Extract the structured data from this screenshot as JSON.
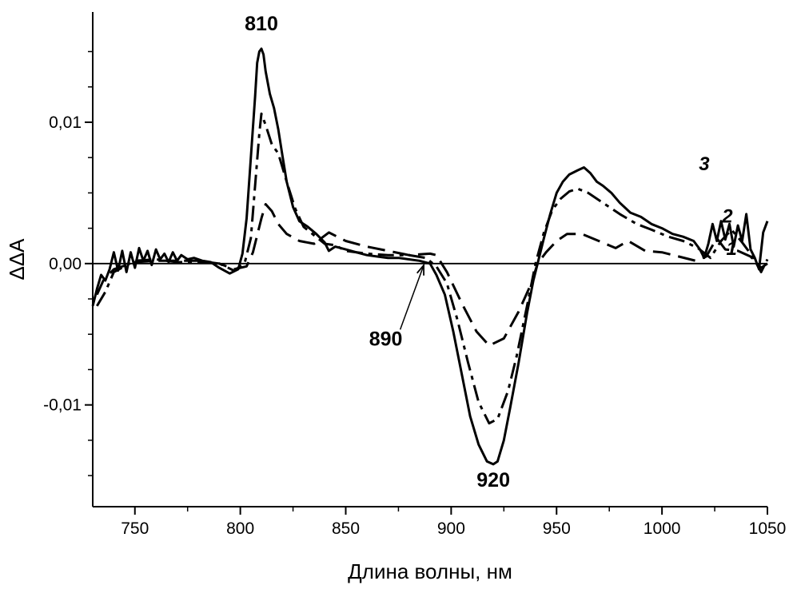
{
  "chart_data": {
    "type": "line",
    "title": "",
    "xlabel": "Длина волны, нм",
    "ylabel": "ΔΔA",
    "xlim": [
      730,
      1050
    ],
    "ylim": [
      -0.0172,
      0.0178
    ],
    "x_ticks": [
      750,
      800,
      850,
      900,
      950,
      1000,
      1050
    ],
    "x_tick_labels": [
      "750",
      "800",
      "850",
      "900",
      "950",
      "1000",
      "1050"
    ],
    "y_ticks": [
      -0.01,
      0.0,
      0.01
    ],
    "y_tick_labels": [
      "-0,01",
      "0,00",
      "0,01"
    ],
    "grid": false,
    "zero_line": true,
    "series": [
      {
        "name": "1",
        "style": "dashed",
        "points": [
          [
            732,
            -0.0022
          ],
          [
            735,
            -0.0012
          ],
          [
            740,
            -0.0004
          ],
          [
            750,
            0.0001
          ],
          [
            760,
            0.0002
          ],
          [
            770,
            0.0002
          ],
          [
            780,
            0.0002
          ],
          [
            790,
            0.0
          ],
          [
            797,
            -0.0004
          ],
          [
            803,
            -0.0002
          ],
          [
            806,
            0.0008
          ],
          [
            810,
            0.0032
          ],
          [
            812,
            0.0042
          ],
          [
            815,
            0.0037
          ],
          [
            818,
            0.0028
          ],
          [
            822,
            0.0021
          ],
          [
            828,
            0.0016
          ],
          [
            835,
            0.0014
          ],
          [
            842,
            0.0022
          ],
          [
            850,
            0.0016
          ],
          [
            860,
            0.0012
          ],
          [
            870,
            0.0009
          ],
          [
            880,
            0.0006
          ],
          [
            890,
            0.0007
          ],
          [
            893,
            0.0006
          ],
          [
            898,
            -0.0006
          ],
          [
            905,
            -0.0028
          ],
          [
            912,
            -0.0048
          ],
          [
            918,
            -0.0058
          ],
          [
            925,
            -0.0053
          ],
          [
            932,
            -0.0034
          ],
          [
            938,
            -0.0014
          ],
          [
            941,
            0.0
          ],
          [
            945,
            0.0008
          ],
          [
            950,
            0.0016
          ],
          [
            955,
            0.0021
          ],
          [
            962,
            0.0021
          ],
          [
            970,
            0.0016
          ],
          [
            978,
            0.0011
          ],
          [
            984,
            0.0016
          ],
          [
            992,
            0.0009
          ],
          [
            1000,
            0.0008
          ],
          [
            1008,
            0.0005
          ],
          [
            1016,
            0.0002
          ],
          [
            1021,
            0.0005
          ],
          [
            1026,
            0.0018
          ],
          [
            1030,
            0.001
          ],
          [
            1036,
            0.0009
          ],
          [
            1042,
            0.0005
          ],
          [
            1047,
            -0.0003
          ],
          [
            1050,
            0.0
          ]
        ]
      },
      {
        "name": "2",
        "style": "dash-dot",
        "points": [
          [
            732,
            -0.003
          ],
          [
            736,
            -0.002
          ],
          [
            740,
            -0.0006
          ],
          [
            750,
            0.0002
          ],
          [
            760,
            0.0003
          ],
          [
            770,
            0.0001
          ],
          [
            780,
            0.0001
          ],
          [
            790,
            0.0
          ],
          [
            797,
            -0.0005
          ],
          [
            802,
            0.0
          ],
          [
            805,
            0.0018
          ],
          [
            807,
            0.0055
          ],
          [
            809,
            0.0092
          ],
          [
            810,
            0.0106
          ],
          [
            812,
            0.0098
          ],
          [
            815,
            0.0084
          ],
          [
            818,
            0.0078
          ],
          [
            822,
            0.0058
          ],
          [
            826,
            0.0039
          ],
          [
            830,
            0.0026
          ],
          [
            835,
            0.002
          ],
          [
            840,
            0.0014
          ],
          [
            845,
            0.0013
          ],
          [
            850,
            0.0009
          ],
          [
            860,
            0.0007
          ],
          [
            870,
            0.0006
          ],
          [
            880,
            0.0006
          ],
          [
            888,
            0.0004
          ],
          [
            893,
            -0.0002
          ],
          [
            898,
            -0.0014
          ],
          [
            903,
            -0.004
          ],
          [
            908,
            -0.007
          ],
          [
            913,
            -0.0098
          ],
          [
            918,
            -0.0113
          ],
          [
            922,
            -0.011
          ],
          [
            927,
            -0.009
          ],
          [
            931,
            -0.0066
          ],
          [
            936,
            -0.003
          ],
          [
            940,
            0.0
          ],
          [
            944,
            0.0022
          ],
          [
            948,
            0.0038
          ],
          [
            952,
            0.0046
          ],
          [
            956,
            0.0051
          ],
          [
            960,
            0.0053
          ],
          [
            965,
            0.005
          ],
          [
            972,
            0.0043
          ],
          [
            980,
            0.0035
          ],
          [
            988,
            0.0028
          ],
          [
            995,
            0.0024
          ],
          [
            1003,
            0.0019
          ],
          [
            1010,
            0.0016
          ],
          [
            1017,
            0.0011
          ],
          [
            1023,
            0.0004
          ],
          [
            1028,
            0.0016
          ],
          [
            1033,
            0.0024
          ],
          [
            1038,
            0.0015
          ],
          [
            1043,
            0.0005
          ],
          [
            1047,
            -0.0006
          ],
          [
            1050,
            0.0003
          ]
        ]
      },
      {
        "name": "3",
        "style": "solid",
        "points": [
          [
            730,
            -0.003
          ],
          [
            732,
            -0.0018
          ],
          [
            734,
            -0.0008
          ],
          [
            736,
            -0.0012
          ],
          [
            738,
            -0.0004
          ],
          [
            740,
            0.0008
          ],
          [
            742,
            -0.0005
          ],
          [
            744,
            0.0009
          ],
          [
            746,
            -0.0006
          ],
          [
            748,
            0.0008
          ],
          [
            750,
            -0.0003
          ],
          [
            752,
            0.0011
          ],
          [
            754,
            0.0002
          ],
          [
            756,
            0.0009
          ],
          [
            758,
            -0.0001
          ],
          [
            760,
            0.001
          ],
          [
            762,
            0.0003
          ],
          [
            764,
            0.0007
          ],
          [
            766,
            0.0001
          ],
          [
            768,
            0.0008
          ],
          [
            770,
            0.0002
          ],
          [
            772,
            0.0006
          ],
          [
            775,
            0.0003
          ],
          [
            778,
            0.0004
          ],
          [
            782,
            0.0002
          ],
          [
            786,
            0.0001
          ],
          [
            790,
            -0.0003
          ],
          [
            795,
            -0.0007
          ],
          [
            799,
            -0.0004
          ],
          [
            801,
            0.0007
          ],
          [
            803,
            0.0032
          ],
          [
            805,
            0.0075
          ],
          [
            807,
            0.0118
          ],
          [
            808,
            0.0142
          ],
          [
            809,
            0.015
          ],
          [
            810,
            0.0152
          ],
          [
            811,
            0.0148
          ],
          [
            812,
            0.0136
          ],
          [
            814,
            0.012
          ],
          [
            816,
            0.011
          ],
          [
            818,
            0.0095
          ],
          [
            820,
            0.0076
          ],
          [
            822,
            0.0058
          ],
          [
            825,
            0.004
          ],
          [
            828,
            0.003
          ],
          [
            832,
            0.0026
          ],
          [
            836,
            0.0021
          ],
          [
            840,
            0.0015
          ],
          [
            842,
            0.0009
          ],
          [
            845,
            0.0012
          ],
          [
            850,
            0.001
          ],
          [
            855,
            0.0008
          ],
          [
            860,
            0.0006
          ],
          [
            865,
            0.0005
          ],
          [
            870,
            0.0004
          ],
          [
            875,
            0.0004
          ],
          [
            880,
            0.0003
          ],
          [
            885,
            0.0002
          ],
          [
            890,
            0.0
          ],
          [
            893,
            -0.0008
          ],
          [
            897,
            -0.0022
          ],
          [
            901,
            -0.0048
          ],
          [
            905,
            -0.0078
          ],
          [
            909,
            -0.0108
          ],
          [
            913,
            -0.0128
          ],
          [
            917,
            -0.014
          ],
          [
            920,
            -0.0142
          ],
          [
            922,
            -0.014
          ],
          [
            925,
            -0.0125
          ],
          [
            928,
            -0.0102
          ],
          [
            932,
            -0.007
          ],
          [
            936,
            -0.0035
          ],
          [
            939,
            -0.0012
          ],
          [
            941,
            0.0
          ],
          [
            944,
            0.0018
          ],
          [
            947,
            0.0035
          ],
          [
            950,
            0.005
          ],
          [
            953,
            0.0058
          ],
          [
            956,
            0.0063
          ],
          [
            960,
            0.0066
          ],
          [
            963,
            0.0068
          ],
          [
            966,
            0.0064
          ],
          [
            969,
            0.0058
          ],
          [
            972,
            0.0055
          ],
          [
            976,
            0.005
          ],
          [
            980,
            0.0043
          ],
          [
            985,
            0.0036
          ],
          [
            990,
            0.0033
          ],
          [
            995,
            0.0028
          ],
          [
            1000,
            0.0025
          ],
          [
            1005,
            0.0021
          ],
          [
            1010,
            0.0019
          ],
          [
            1015,
            0.0016
          ],
          [
            1018,
            0.001
          ],
          [
            1020,
            0.0004
          ],
          [
            1022,
            0.0014
          ],
          [
            1024,
            0.0028
          ],
          [
            1026,
            0.0016
          ],
          [
            1028,
            0.003
          ],
          [
            1030,
            0.0017
          ],
          [
            1032,
            0.0028
          ],
          [
            1034,
            0.0012
          ],
          [
            1036,
            0.0027
          ],
          [
            1038,
            0.0016
          ],
          [
            1040,
            0.0035
          ],
          [
            1042,
            0.001
          ],
          [
            1044,
            0.0004
          ],
          [
            1046,
            -0.0004
          ],
          [
            1048,
            0.0022
          ],
          [
            1050,
            0.003
          ]
        ]
      }
    ],
    "curve_labels": [
      {
        "text": "1",
        "x": 1033,
        "y": 0.0006
      },
      {
        "text": "2",
        "x": 1031,
        "y": 0.0029
      },
      {
        "text": "3",
        "x": 1020,
        "y": 0.0066
      }
    ],
    "annotations": [
      {
        "text": "810",
        "x": 810,
        "y": 0.0165
      },
      {
        "text": "920",
        "x": 920,
        "y": -0.0158
      },
      {
        "text": "890",
        "x": 869,
        "y": -0.0058,
        "arrow_to": [
          887,
          0.0
        ]
      }
    ]
  }
}
